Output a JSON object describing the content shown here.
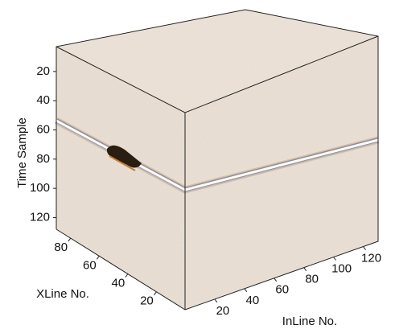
{
  "chart_data": {
    "type": "cube3d",
    "z_label": "Time Sample",
    "y_label": "XLine No.",
    "x_label": "InLine No.",
    "zlim": [
      3,
      128
    ],
    "zticks": [
      20,
      40,
      60,
      80,
      100,
      120
    ],
    "ylim": [
      0,
      90
    ],
    "yticks": [
      20,
      40,
      60,
      80
    ],
    "xlim": [
      0,
      130
    ],
    "xticks": [
      20,
      40,
      60,
      80,
      100,
      120
    ]
  }
}
